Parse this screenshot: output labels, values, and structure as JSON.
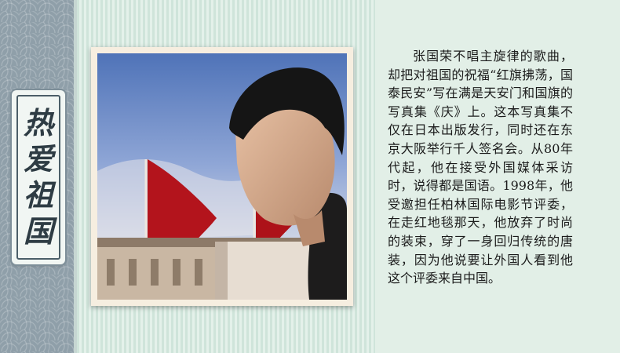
{
  "title": {
    "chars": [
      "热",
      "爱",
      "祖",
      "国"
    ]
  },
  "photo": {
    "subject": "portrait-photo"
  },
  "body_text": "张国荣不唱主旋律的歌曲，却把对祖国的祝福“红旗拂荡，国泰民安”写在满是天安门和国旗的写真集《庆》上。这本写真集不仅在日本出版发行，同时还在东京大阪举行千人签名会。从80年代起，他在接受外国媒体采访时，说得都是国语。1998年，他受邀担任柏林国际电影节评委，在走红地毯那天，他放弃了时尚的装束，穿了一身回归传统的唐装，因为他说要让外国人看到他这个评委来自中国。",
  "colors": {
    "left_band": "#8f9fa9",
    "stripe_light": "#e4f1ea",
    "stripe_dark": "#cfe4da",
    "panel": "#e2efe7",
    "flag_red": "#b3141c",
    "text": "#1b1b1b"
  }
}
